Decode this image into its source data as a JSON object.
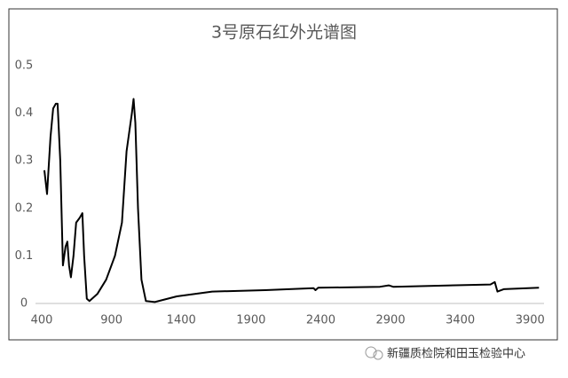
{
  "chart_data": {
    "type": "line",
    "title": "3号原石红外光谱图",
    "x": [
      419,
      438,
      463,
      482,
      501,
      514,
      533,
      552,
      571,
      584,
      596,
      609,
      628,
      647,
      672,
      691,
      704,
      723,
      742,
      799,
      862,
      925,
      975,
      1008,
      1027,
      1046,
      1058,
      1071,
      1090,
      1115,
      1147,
      1210,
      1368,
      1622,
      2000,
      2349,
      2362,
      2381,
      2824,
      2887,
      2919,
      3616,
      3647,
      3666,
      3711,
      3964
    ],
    "series": [
      {
        "color": "#000000",
        "values": [
          0.28,
          0.23,
          0.35,
          0.41,
          0.42,
          0.42,
          0.3,
          0.08,
          0.12,
          0.13,
          0.08,
          0.055,
          0.1,
          0.17,
          0.18,
          0.19,
          0.1,
          0.01,
          0.005,
          0.02,
          0.05,
          0.1,
          0.17,
          0.32,
          0.36,
          0.4,
          0.43,
          0.38,
          0.2,
          0.05,
          0.005,
          0.003,
          0.015,
          0.025,
          0.028,
          0.032,
          0.028,
          0.033,
          0.035,
          0.038,
          0.035,
          0.04,
          0.045,
          0.025,
          0.03,
          0.033
        ]
      }
    ],
    "xlim": [
      400,
      4000
    ],
    "xticks": [
      400,
      900,
      1400,
      1900,
      2400,
      2900,
      3400,
      3900
    ],
    "ylim": [
      0,
      0.5
    ],
    "yticks": [
      0,
      0.1,
      0.2,
      0.3,
      0.4,
      0.5
    ]
  },
  "watermark": "新疆质检院和田玉检验中心"
}
